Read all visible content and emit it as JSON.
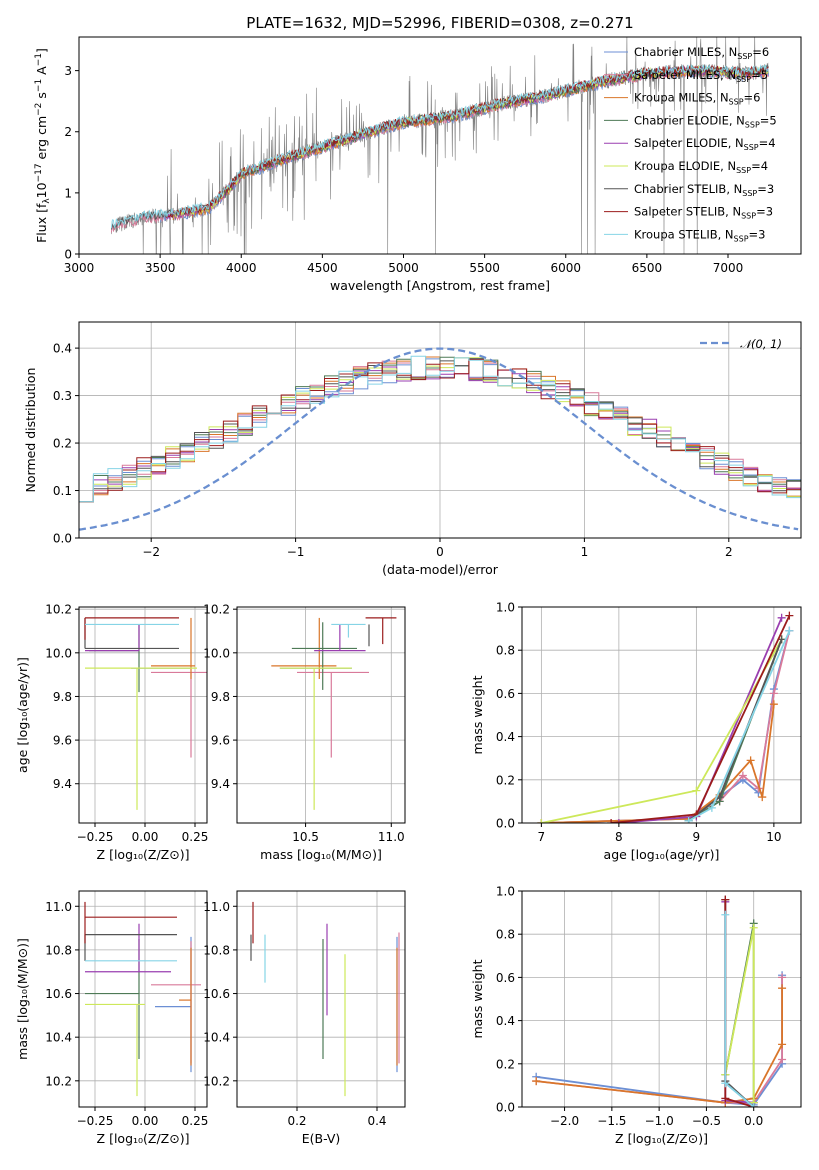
{
  "title": "PLATE=1632, MJD=52996, FIBERID=0308, z=0.271",
  "colors": {
    "Chabrier MILES": "#6c8fd4",
    "Salpeter MILES": "#d97a9a",
    "Kroupa MILES": "#d9762a",
    "Chabrier ELODIE": "#4e7a56",
    "Salpeter ELODIE": "#9a3fb0",
    "Kroupa ELODIE": "#cde85a",
    "Chabrier STELIB": "#555555",
    "Salpeter STELIB": "#9b1c1c",
    "Kroupa STELIB": "#86d4e6"
  },
  "chart_data": [
    {
      "id": "spectrum",
      "type": "line",
      "xlabel": "wavelength [Angstrom, rest frame]",
      "ylabel_main": "Flux [f",
      "ylabel_sub": "λ",
      "ylabel_rest": "10",
      "ylabel_exp1": "−17",
      "ylabel_rest2": " erg cm",
      "ylabel_exp2": "−2",
      "ylabel_rest3": " s",
      "ylabel_exp3": "−1",
      "ylabel_rest4": " A",
      "ylabel_exp4": "−1",
      "ylabel_end": "]",
      "xlim": [
        3000,
        7450
      ],
      "ylim": [
        0,
        3.55
      ],
      "xticks": [
        3000,
        3500,
        4000,
        4500,
        5000,
        5500,
        6000,
        6500,
        7000
      ],
      "yticks": [
        0,
        1,
        2,
        3
      ],
      "legend_position": "upper-right",
      "grid": false,
      "series": [
        {
          "name": "Chabrier MILES",
          "nssp": "6"
        },
        {
          "name": "Salpeter MILES",
          "nssp": "5"
        },
        {
          "name": "Kroupa MILES",
          "nssp": "6"
        },
        {
          "name": "Chabrier ELODIE",
          "nssp": "5"
        },
        {
          "name": "Salpeter ELODIE",
          "nssp": "4"
        },
        {
          "name": "Kroupa ELODIE",
          "nssp": "4"
        },
        {
          "name": "Chabrier STELIB",
          "nssp": "3"
        },
        {
          "name": "Salpeter STELIB",
          "nssp": "3"
        },
        {
          "name": "Kroupa STELIB",
          "nssp": "3"
        }
      ],
      "continuum_points": [
        [
          3200,
          0.45
        ],
        [
          3400,
          0.6
        ],
        [
          3600,
          0.65
        ],
        [
          3800,
          0.75
        ],
        [
          3900,
          1.0
        ],
        [
          4000,
          1.3
        ],
        [
          4200,
          1.5
        ],
        [
          4500,
          1.75
        ],
        [
          4800,
          2.0
        ],
        [
          5000,
          2.15
        ],
        [
          5300,
          2.25
        ],
        [
          5600,
          2.45
        ],
        [
          5900,
          2.6
        ],
        [
          6200,
          2.8
        ],
        [
          6500,
          2.95
        ],
        [
          6800,
          3.0
        ],
        [
          7100,
          2.95
        ],
        [
          7250,
          3.0
        ]
      ]
    },
    {
      "id": "residuals",
      "type": "histogram",
      "xlabel": "(data-model)/error",
      "ylabel": "Normed distribution",
      "xlim": [
        -2.5,
        2.5
      ],
      "ylim": [
        0,
        0.455
      ],
      "xticks": [
        -2,
        -1,
        0,
        1,
        2
      ],
      "xticklabels": [
        "−2",
        "−1",
        "0",
        "1",
        "2"
      ],
      "yticks": [
        0,
        0.1,
        0.2,
        0.3,
        0.4
      ],
      "yticklabels": [
        "0.0",
        "0.1",
        "0.2",
        "0.3",
        "0.4"
      ],
      "grid": true,
      "legend_position": "upper-right",
      "reference_label": "𝒩(0, 1)",
      "bin_width": 0.1
    },
    {
      "id": "age_vs_Z",
      "type": "errorbar",
      "xlabel": "Z [log₁₀(Z/Z⊙)]",
      "ylabel": "age  [log₁₀(age/yr)]",
      "xlim": [
        -0.33,
        0.31
      ],
      "ylim": [
        9.22,
        10.21
      ],
      "xticks": [
        -0.25,
        0.0,
        0.25
      ],
      "xticklabels": [
        "−0.25",
        "0.00",
        "0.25"
      ],
      "yticks": [
        9.4,
        9.6,
        9.8,
        10.0,
        10.2
      ],
      "yticklabels": [
        "9.4",
        "9.6",
        "9.8",
        "10.0",
        "10.2"
      ],
      "grid": true,
      "points": [
        {
          "model": "Chabrier MILES",
          "x": 0.23,
          "xerr": [
            0.3,
            0.0
          ],
          "y": 9.93,
          "yerr": [
            0.0,
            0.0
          ]
        },
        {
          "model": "Salpeter MILES",
          "x": 0.23,
          "xerr": [
            0.2,
            0.08
          ],
          "y": 9.91,
          "yerr": [
            0.39,
            0.0
          ]
        },
        {
          "model": "Kroupa MILES",
          "x": 0.23,
          "xerr": [
            0.2,
            0.02
          ],
          "y": 9.94,
          "yerr": [
            0.06,
            0.22
          ]
        },
        {
          "model": "Chabrier ELODIE",
          "x": -0.03,
          "xerr": [
            0.25,
            0.0
          ],
          "y": 10.01,
          "yerr": [
            0.19,
            0.12
          ]
        },
        {
          "model": "Salpeter ELODIE",
          "x": -0.03,
          "xerr": [
            0.27,
            0.0
          ],
          "y": 10.01,
          "yerr": [
            0.0,
            0.12
          ]
        },
        {
          "model": "Kroupa ELODIE",
          "x": -0.04,
          "xerr": [
            0.26,
            0.3
          ],
          "y": 9.93,
          "yerr": [
            0.65,
            0.0
          ]
        },
        {
          "model": "Chabrier STELIB",
          "x": -0.3,
          "xerr": [
            0.0,
            0.47
          ],
          "y": 10.02,
          "yerr": [
            0.0,
            0.14
          ]
        },
        {
          "model": "Salpeter STELIB",
          "x": -0.3,
          "xerr": [
            0.0,
            0.47
          ],
          "y": 10.16,
          "yerr": [
            0.1,
            0.0
          ]
        },
        {
          "model": "Kroupa STELIB",
          "x": -0.3,
          "xerr": [
            0.0,
            0.47
          ],
          "y": 10.13,
          "yerr": [
            0.0,
            0.0
          ]
        }
      ]
    },
    {
      "id": "age_vs_mass",
      "type": "errorbar",
      "xlabel": "mass [log₁₀(M/M⊙)]",
      "xlim": [
        10.1,
        11.08
      ],
      "ylim": [
        9.22,
        10.21
      ],
      "xticks": [
        10.5,
        11.0
      ],
      "xticklabels": [
        "10.5",
        "11.0"
      ],
      "yticks": [
        9.4,
        9.6,
        9.8,
        10.0,
        10.2
      ],
      "yticklabels": [
        "9.4",
        "9.6",
        "9.8",
        "10.0",
        "10.2"
      ],
      "grid": true,
      "points": [
        {
          "model": "Chabrier MILES",
          "x": 10.55,
          "xerr": [
            0.2,
            0.22
          ],
          "y": 9.93,
          "yerr": [
            0.0,
            0.0
          ]
        },
        {
          "model": "Salpeter MILES",
          "x": 10.65,
          "xerr": [
            0.2,
            0.22
          ],
          "y": 9.91,
          "yerr": [
            0.39,
            0.0
          ]
        },
        {
          "model": "Kroupa MILES",
          "x": 10.58,
          "xerr": [
            0.28,
            0.1
          ],
          "y": 9.94,
          "yerr": [
            0.06,
            0.22
          ]
        },
        {
          "model": "Chabrier ELODIE",
          "x": 10.6,
          "xerr": [
            0.18,
            0.2
          ],
          "y": 10.02,
          "yerr": [
            0.19,
            0.12
          ]
        },
        {
          "model": "Salpeter ELODIE",
          "x": 10.7,
          "xerr": [
            0.15,
            0.15
          ],
          "y": 10.01,
          "yerr": [
            0.0,
            0.12
          ]
        },
        {
          "model": "Kroupa ELODIE",
          "x": 10.55,
          "xerr": [
            0.2,
            0.22
          ],
          "y": 9.93,
          "yerr": [
            0.65,
            0.0
          ]
        },
        {
          "model": "Chabrier STELIB",
          "x": 10.87,
          "xerr": [
            0.0,
            0.0
          ],
          "y": 10.13,
          "yerr": [
            0.1,
            0.0
          ]
        },
        {
          "model": "Salpeter STELIB",
          "x": 10.95,
          "xerr": [
            0.1,
            0.08
          ],
          "y": 10.16,
          "yerr": [
            0.12,
            0.0
          ]
        },
        {
          "model": "Kroupa STELIB",
          "x": 10.75,
          "xerr": [
            0.1,
            0.1
          ],
          "y": 10.13,
          "yerr": [
            0.06,
            0.0
          ]
        }
      ]
    },
    {
      "id": "massweight_vs_age",
      "type": "line",
      "xlabel": "age  [log₁₀(age/yr)]",
      "ylabel": "mass weight",
      "xlim": [
        6.75,
        10.35
      ],
      "ylim": [
        0,
        1.0
      ],
      "xticks": [
        7,
        8,
        9,
        10
      ],
      "yticks": [
        0,
        0.2,
        0.4,
        0.6,
        0.8,
        1.0
      ],
      "yticklabels": [
        "0.0",
        "0.2",
        "0.4",
        "0.6",
        "0.8",
        "1.0"
      ],
      "grid": true,
      "series": [
        {
          "model": "Chabrier MILES",
          "x": [
            7.0,
            8.9,
            9.3,
            9.6,
            9.8,
            10.0,
            10.2
          ],
          "y": [
            0.0,
            0.02,
            0.12,
            0.2,
            0.14,
            0.62,
            0.89
          ]
        },
        {
          "model": "Salpeter MILES",
          "x": [
            7.0,
            8.9,
            9.3,
            9.6,
            9.8,
            10.0,
            10.2
          ],
          "y": [
            0.0,
            0.02,
            0.1,
            0.22,
            0.16,
            0.6,
            0.89
          ]
        },
        {
          "model": "Kroupa MILES",
          "x": [
            7.0,
            8.9,
            9.3,
            9.7,
            9.85,
            10.0
          ],
          "y": [
            0.0,
            0.02,
            0.13,
            0.29,
            0.12,
            0.55
          ]
        },
        {
          "model": "Chabrier ELODIE",
          "x": [
            8.9,
            9.3,
            10.1
          ],
          "y": [
            0.01,
            0.1,
            0.85
          ]
        },
        {
          "model": "Salpeter ELODIE",
          "x": [
            8.0,
            9.0,
            10.1
          ],
          "y": [
            0.0,
            0.03,
            0.95
          ]
        },
        {
          "model": "Kroupa ELODIE",
          "x": [
            7.0,
            9.0,
            10.1
          ],
          "y": [
            0.0,
            0.15,
            0.85
          ]
        },
        {
          "model": "Chabrier STELIB",
          "x": [
            8.9,
            9.3,
            10.1
          ],
          "y": [
            0.01,
            0.12,
            0.85
          ]
        },
        {
          "model": "Salpeter STELIB",
          "x": [
            7.9,
            9.0,
            10.2
          ],
          "y": [
            0.0,
            0.04,
            0.96
          ]
        },
        {
          "model": "Kroupa STELIB",
          "x": [
            8.9,
            9.2,
            10.2
          ],
          "y": [
            0.01,
            0.07,
            0.89
          ]
        }
      ]
    },
    {
      "id": "mass_vs_Z",
      "type": "errorbar",
      "xlabel": "Z [log₁₀(Z/Z⊙)]",
      "ylabel": "mass [log₁₀(M/M⊙)]",
      "xlim": [
        -0.33,
        0.31
      ],
      "ylim": [
        10.08,
        11.07
      ],
      "xticks": [
        -0.25,
        0.0,
        0.25
      ],
      "xticklabels": [
        "−0.25",
        "0.00",
        "0.25"
      ],
      "yticks": [
        10.2,
        10.4,
        10.6,
        10.8,
        11.0
      ],
      "yticklabels": [
        "10.2",
        "10.4",
        "10.6",
        "10.8",
        "11.0"
      ],
      "grid": true,
      "points": [
        {
          "model": "Chabrier MILES",
          "x": 0.23,
          "xerr": [
            0.18,
            0.0
          ],
          "y": 10.54,
          "yerr": [
            0.3,
            0.32
          ]
        },
        {
          "model": "Salpeter MILES",
          "x": 0.23,
          "xerr": [
            0.2,
            0.05
          ],
          "y": 10.64,
          "yerr": [
            0.36,
            0.2
          ]
        },
        {
          "model": "Kroupa MILES",
          "x": 0.23,
          "xerr": [
            0.06,
            0.0
          ],
          "y": 10.57,
          "yerr": [
            0.3,
            0.24
          ]
        },
        {
          "model": "Chabrier ELODIE",
          "x": -0.03,
          "xerr": [
            0.27,
            0.0
          ],
          "y": 10.6,
          "yerr": [
            0.3,
            0.25
          ]
        },
        {
          "model": "Salpeter ELODIE",
          "x": -0.03,
          "xerr": [
            0.27,
            0.16
          ],
          "y": 10.7,
          "yerr": [
            0.0,
            0.22
          ]
        },
        {
          "model": "Kroupa ELODIE",
          "x": -0.04,
          "xerr": [
            0.26,
            0.04
          ],
          "y": 10.55,
          "yerr": [
            0.42,
            0.0
          ]
        },
        {
          "model": "Chabrier STELIB",
          "x": -0.3,
          "xerr": [
            0.0,
            0.46
          ],
          "y": 10.87,
          "yerr": [
            0.12,
            0.0
          ]
        },
        {
          "model": "Salpeter STELIB",
          "x": -0.3,
          "xerr": [
            0.0,
            0.46
          ],
          "y": 10.95,
          "yerr": [
            0.12,
            0.07
          ]
        },
        {
          "model": "Kroupa STELIB",
          "x": -0.3,
          "xerr": [
            0.0,
            0.46
          ],
          "y": 10.75,
          "yerr": [
            0.0,
            0.0
          ]
        }
      ]
    },
    {
      "id": "mass_vs_EBV",
      "type": "errorbar",
      "xlabel": "E(B-V)",
      "xlim": [
        0.05,
        0.47
      ],
      "ylim": [
        10.08,
        11.07
      ],
      "xticks": [
        0.2,
        0.4
      ],
      "xticklabels": [
        "0.2",
        "0.4"
      ],
      "yticks": [
        10.2,
        10.4,
        10.6,
        10.8,
        11.0
      ],
      "yticklabels": [
        "10.2",
        "10.4",
        "10.6",
        "10.8",
        "11.0"
      ],
      "grid": true,
      "points": [
        {
          "model": "Chabrier MILES",
          "x": 0.45,
          "yerr": [
            0.3,
            0.32
          ],
          "y": 10.54
        },
        {
          "model": "Salpeter MILES",
          "x": 0.455,
          "yerr": [
            0.36,
            0.24
          ],
          "y": 10.64
        },
        {
          "model": "Kroupa MILES",
          "x": 0.45,
          "yerr": [
            0.3,
            0.24
          ],
          "y": 10.57
        },
        {
          "model": "Chabrier ELODIE",
          "x": 0.265,
          "yerr": [
            0.3,
            0.25
          ],
          "y": 10.6
        },
        {
          "model": "Salpeter ELODIE",
          "x": 0.275,
          "yerr": [
            0.2,
            0.22
          ],
          "y": 10.7
        },
        {
          "model": "Kroupa ELODIE",
          "x": 0.32,
          "yerr": [
            0.42,
            0.23
          ],
          "y": 10.55
        },
        {
          "model": "Chabrier STELIB",
          "x": 0.085,
          "yerr": [
            0.12,
            0.0
          ],
          "y": 10.87
        },
        {
          "model": "Salpeter STELIB",
          "x": 0.09,
          "yerr": [
            0.12,
            0.07
          ],
          "y": 10.95
        },
        {
          "model": "Kroupa STELIB",
          "x": 0.12,
          "yerr": [
            0.1,
            0.12
          ],
          "y": 10.75
        }
      ]
    },
    {
      "id": "massweight_vs_Z",
      "type": "line",
      "xlabel": "Z [log₁₀(Z/Z⊙)]",
      "ylabel": "mass weight",
      "xlim": [
        -2.45,
        0.5
      ],
      "ylim": [
        0,
        1.0
      ],
      "xticks": [
        -2.0,
        -1.5,
        -1.0,
        -0.5,
        0.0
      ],
      "xticklabels": [
        "−2.0",
        "−1.5",
        "−1.0",
        "−0.5",
        "0.0"
      ],
      "yticks": [
        0,
        0.2,
        0.4,
        0.6,
        0.8,
        1.0
      ],
      "yticklabels": [
        "0.0",
        "0.2",
        "0.4",
        "0.6",
        "0.8",
        "1.0"
      ],
      "grid": true,
      "series": [
        {
          "model": "Chabrier MILES",
          "x": [
            -2.3,
            -0.3,
            0.0,
            0.3,
            0.3
          ],
          "y": [
            0.14,
            0.02,
            0.01,
            0.2,
            0.61
          ]
        },
        {
          "model": "Salpeter MILES",
          "x": [
            -2.3,
            -0.3,
            0.0,
            0.3,
            0.3
          ],
          "y": [
            0.12,
            0.02,
            0.02,
            0.22,
            0.6
          ]
        },
        {
          "model": "Kroupa MILES",
          "x": [
            -2.3,
            -0.3,
            0.0,
            0.3,
            0.3
          ],
          "y": [
            0.12,
            0.02,
            0.04,
            0.29,
            0.55
          ]
        },
        {
          "model": "Chabrier ELODIE",
          "x": [
            -0.3,
            0.0,
            0.0
          ],
          "y": [
            0.15,
            0.85,
            0.0
          ]
        },
        {
          "model": "Salpeter ELODIE",
          "x": [
            -0.3,
            -0.3,
            0.0
          ],
          "y": [
            0.95,
            0.03,
            0.02
          ]
        },
        {
          "model": "Kroupa ELODIE",
          "x": [
            -0.3,
            0.0,
            0.0
          ],
          "y": [
            0.15,
            0.83,
            0.02
          ]
        },
        {
          "model": "Chabrier STELIB",
          "x": [
            -0.3,
            -0.3,
            0.0
          ],
          "y": [
            0.96,
            0.12,
            0.0
          ]
        },
        {
          "model": "Salpeter STELIB",
          "x": [
            -0.3,
            -0.3,
            0.0
          ],
          "y": [
            0.96,
            0.04,
            0.0
          ]
        },
        {
          "model": "Kroupa STELIB",
          "x": [
            -0.3,
            -0.3,
            0.0
          ],
          "y": [
            0.89,
            0.11,
            0.0
          ]
        }
      ]
    }
  ]
}
